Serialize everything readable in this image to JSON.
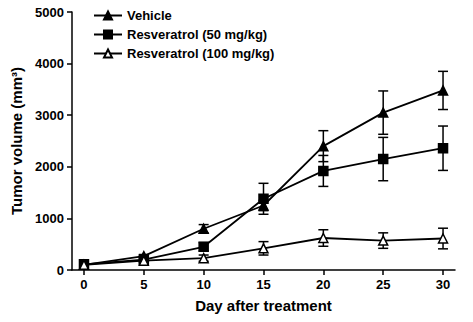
{
  "chart_data": {
    "type": "line",
    "x_label": "Day after treatment",
    "y_label": "Tumor volume (mm³)",
    "x": [
      0,
      5,
      10,
      15,
      20,
      25,
      30
    ],
    "series": [
      {
        "name": "Vehicle",
        "color": "#000000",
        "marker": "triangle",
        "line_style": "solid",
        "values": [
          100,
          270,
          800,
          1250,
          2400,
          3050,
          3480
        ],
        "errors": [
          20,
          30,
          80,
          100,
          300,
          420,
          370
        ]
      },
      {
        "name": "Resveratrol (50 mg/kg)",
        "color": "#000000",
        "marker": "square",
        "line_style": "solid",
        "values": [
          110,
          200,
          450,
          1380,
          1920,
          2150,
          2360
        ],
        "errors": [
          20,
          40,
          80,
          300,
          300,
          420,
          430
        ]
      },
      {
        "name": "Resveratrol (100 mg/kg)",
        "color": "#000000",
        "marker": "open triangle",
        "line_style": "solid",
        "values": [
          100,
          180,
          230,
          420,
          620,
          570,
          610
        ],
        "errors": [
          10,
          40,
          60,
          130,
          160,
          150,
          200
        ]
      }
    ],
    "xlim": [
      -1,
      31
    ],
    "xticks": [
      0,
      5,
      10,
      15,
      20,
      25,
      30
    ],
    "ylim": [
      0,
      5000
    ],
    "yticks": [
      0,
      1000,
      2000,
      3000,
      4000,
      5000
    ],
    "grid": false,
    "legend": "upper left"
  }
}
